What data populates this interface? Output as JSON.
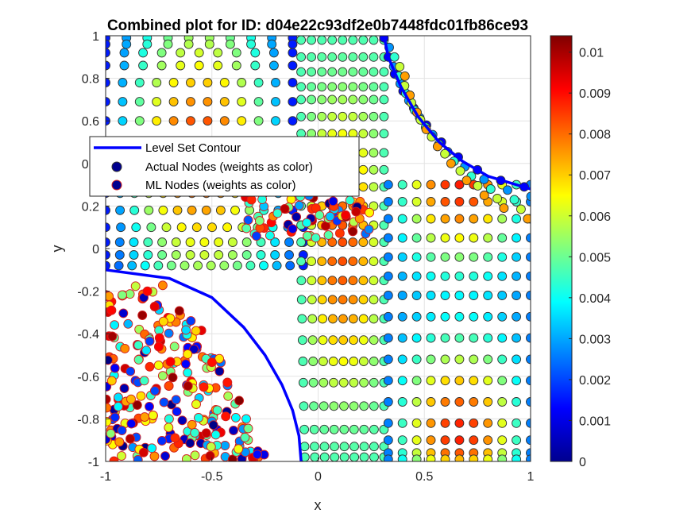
{
  "chart_data": {
    "type": "scatter",
    "title": "Combined plot for ID: d04e22c93df2e0b7448fdc01fb86ce93",
    "xlabel": "x",
    "ylabel": "y",
    "xlim": [
      -1,
      1
    ],
    "ylim": [
      -1,
      1
    ],
    "grid": true,
    "legend_position": "upper-left",
    "x_ticks": [
      -1,
      -0.5,
      0,
      0.5,
      1
    ],
    "x_tick_labels": [
      "-1",
      "-0.5",
      "0",
      "0.5",
      "1"
    ],
    "y_ticks": [
      -1,
      -0.8,
      -0.6,
      -0.4,
      -0.2,
      0,
      0.2,
      0.4,
      0.6,
      0.8,
      1
    ],
    "y_tick_labels": [
      "-1",
      "-0.8",
      "-0.6",
      "-0.4",
      "-0.2",
      "0",
      "0.2",
      "0.4",
      "0.6",
      "0.8",
      "1"
    ],
    "colorbar": {
      "min": 0,
      "max": 0.0104,
      "colormap": "jet",
      "ticks": [
        0,
        0.001,
        0.002,
        0.003,
        0.004,
        0.005,
        0.006,
        0.007,
        0.008,
        0.009,
        0.01
      ],
      "tick_labels": [
        "0",
        "0.001",
        "0.002",
        "0.003",
        "0.004",
        "0.005",
        "0.006",
        "0.007",
        "0.008",
        "0.009",
        "0.01"
      ]
    },
    "series": [
      {
        "name": "Level Set Contour",
        "kind": "line",
        "color": "#0000ff",
        "segments": [
          [
            [
              -1,
              -0.1
            ],
            [
              -0.7,
              -0.14
            ],
            [
              -0.5,
              -0.23
            ],
            [
              -0.35,
              -0.37
            ],
            [
              -0.25,
              -0.5
            ],
            [
              -0.17,
              -0.64
            ],
            [
              -0.12,
              -0.76
            ],
            [
              -0.09,
              -0.88
            ],
            [
              -0.08,
              -1
            ]
          ],
          [
            [
              0.31,
              1
            ],
            [
              0.33,
              0.9
            ],
            [
              0.39,
              0.76
            ],
            [
              0.47,
              0.62
            ],
            [
              0.57,
              0.5
            ],
            [
              0.68,
              0.41
            ],
            [
              0.8,
              0.34
            ],
            [
              1,
              0.28
            ]
          ]
        ]
      },
      {
        "name": "Actual Nodes (weights as color)",
        "kind": "scatter",
        "edge_color": "#333333",
        "generated_by": "band grid between the two contour arcs; weights vary across the band"
      },
      {
        "name": "ML Nodes (weights as color)",
        "kind": "scatter",
        "edge_color": "#d02020",
        "generated_by": "scattered cloud in lower-left region"
      }
    ]
  }
}
